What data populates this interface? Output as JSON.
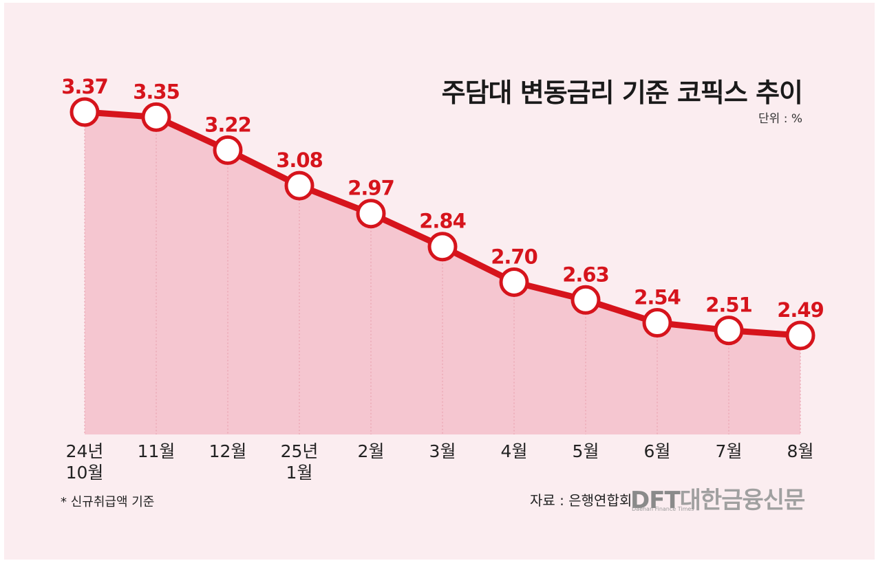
{
  "chart_data": {
    "type": "line",
    "title": "주담대 변동금리 기준 코픽스 추이",
    "unit": "단위 : %",
    "categories": [
      "24년\n10월",
      "11월",
      "12월",
      "25년\n1월",
      "2월",
      "3월",
      "4월",
      "5월",
      "6월",
      "7월",
      "8월"
    ],
    "values": [
      3.37,
      3.35,
      3.22,
      3.08,
      2.97,
      2.84,
      2.7,
      2.63,
      2.54,
      2.51,
      2.49
    ],
    "value_labels": [
      "3.37",
      "3.35",
      "3.22",
      "3.08",
      "2.97",
      "2.84",
      "2.70",
      "2.63",
      "2.54",
      "2.51",
      "2.49"
    ],
    "footnote": "* 신규취급액 기준",
    "source": "자료 : 은행연합회",
    "colors": {
      "line": "#d6141c",
      "area": "#f5c6d0",
      "background": "#fbedf0"
    }
  },
  "logo": {
    "text": "DFT대한금융신문",
    "sub": "Daehan Finance Times"
  }
}
